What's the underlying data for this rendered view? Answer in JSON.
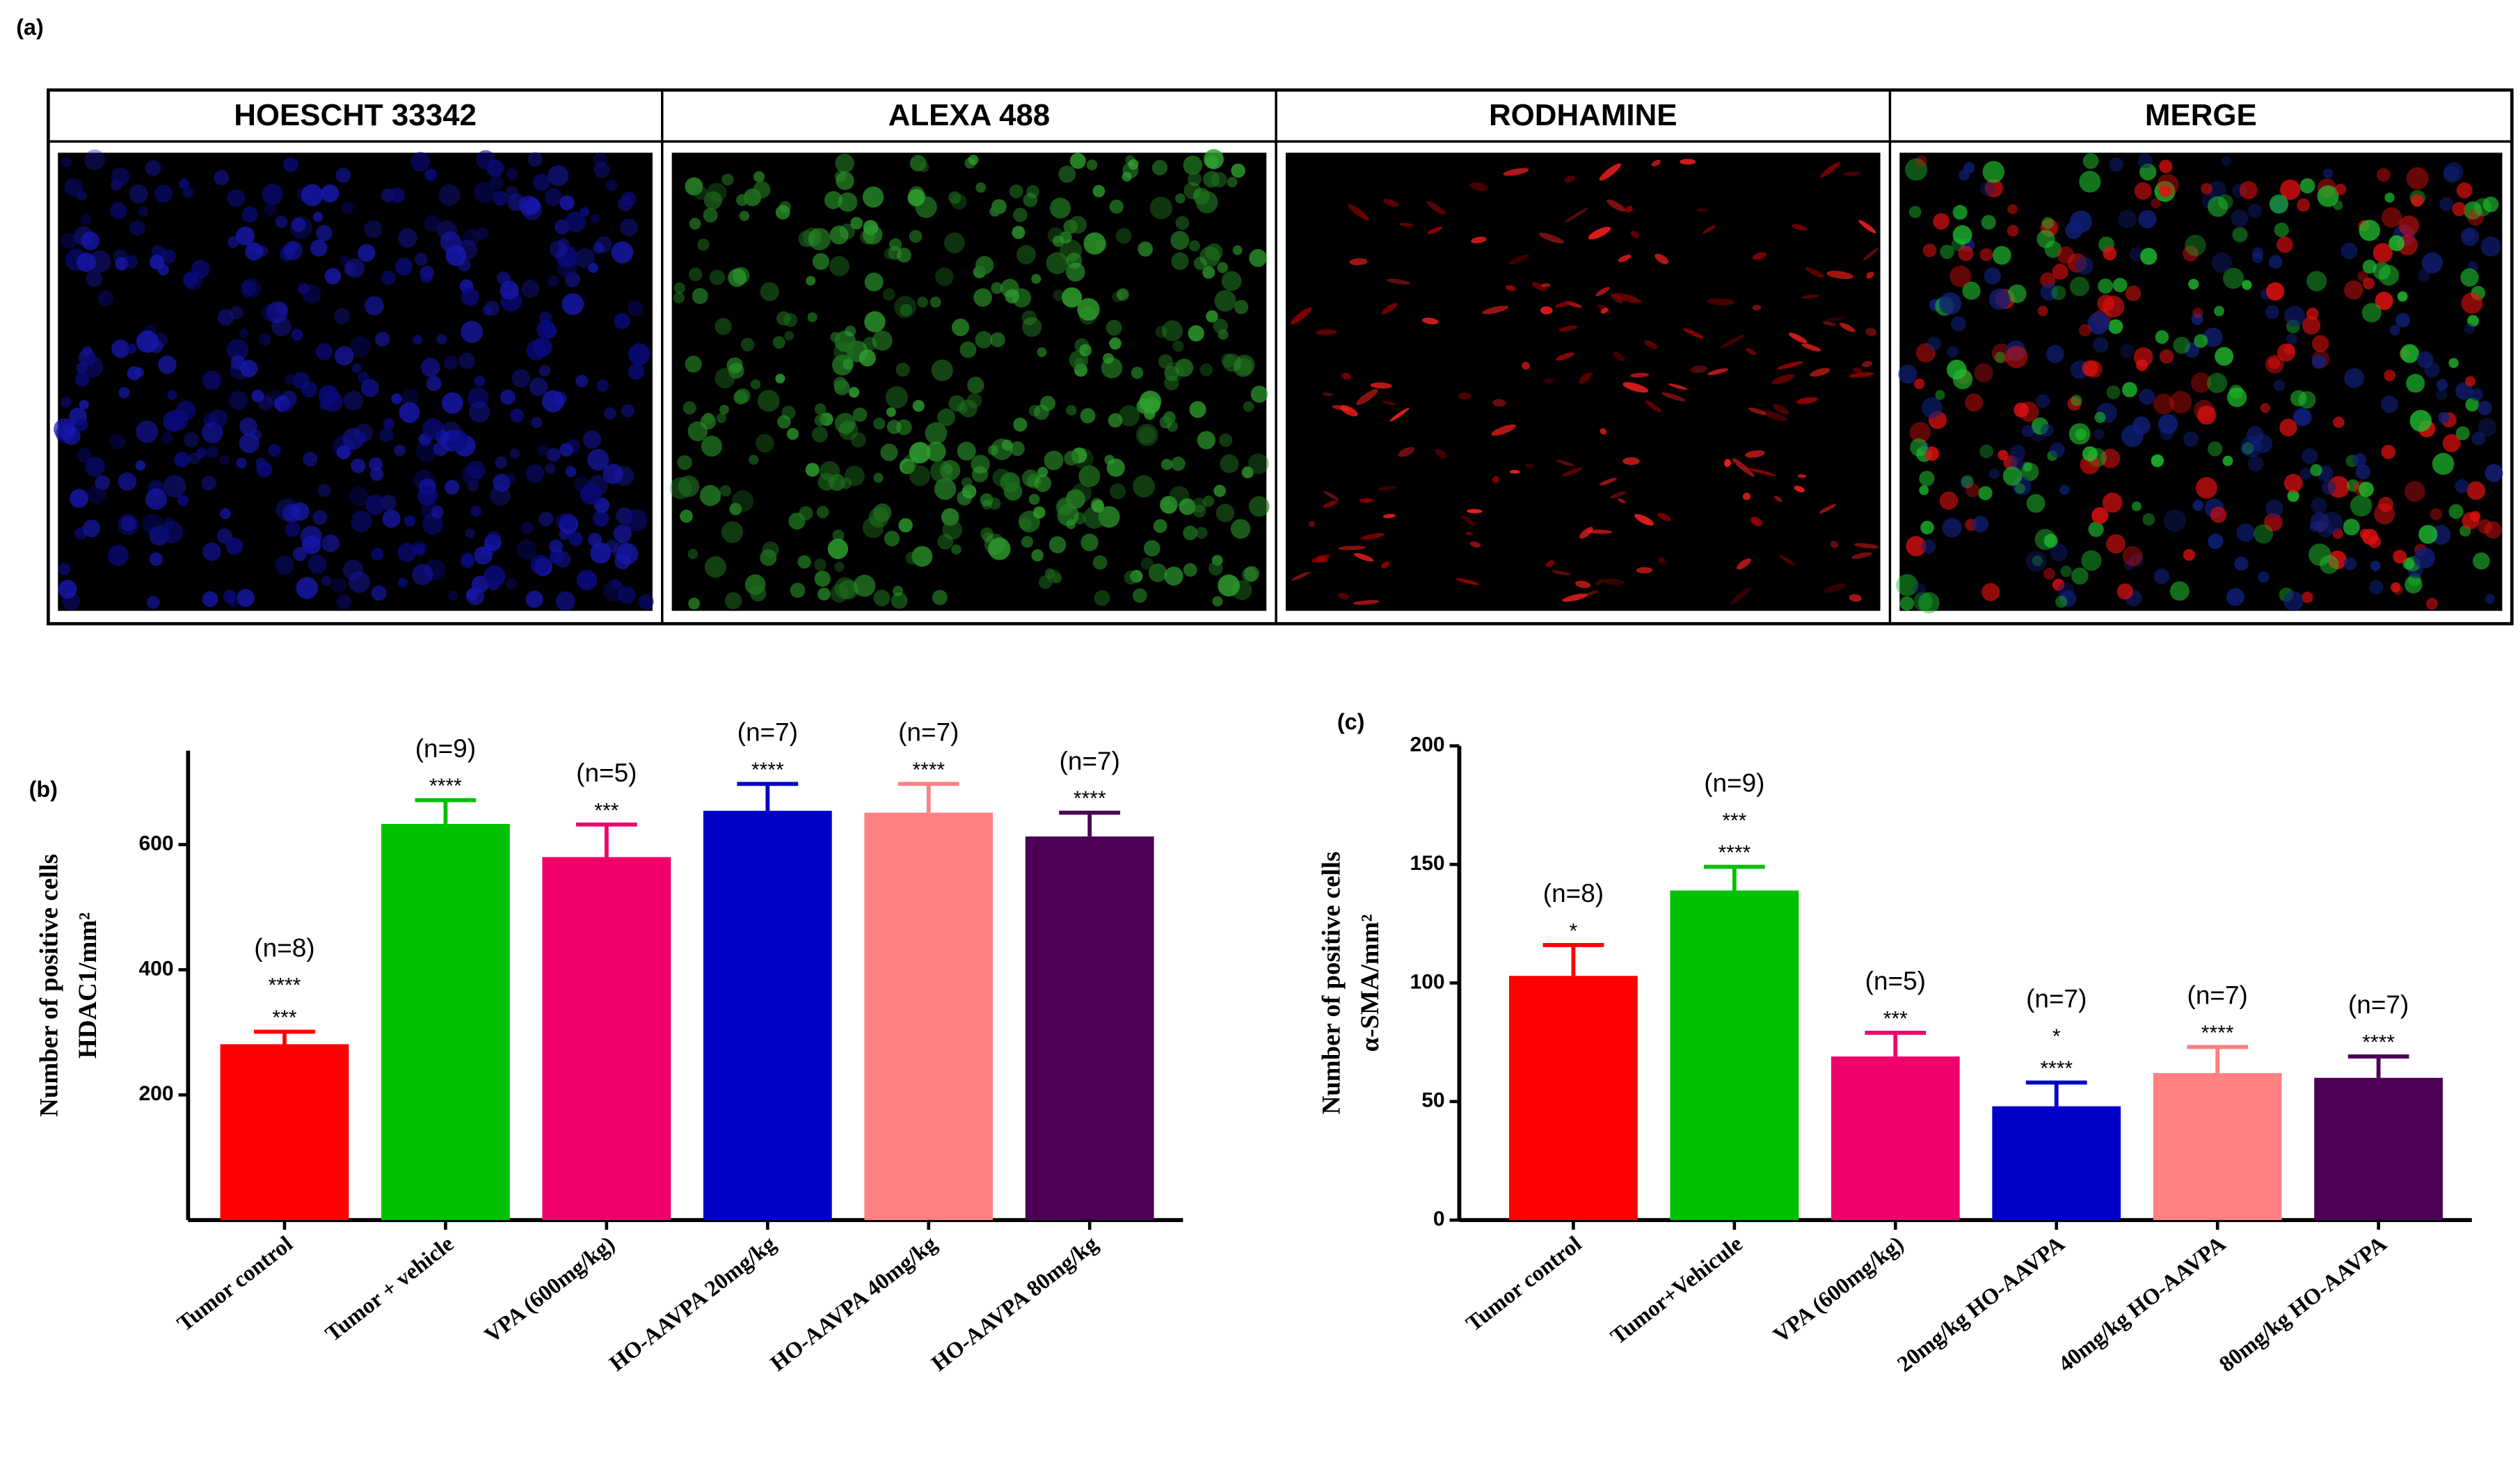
{
  "panel_a": {
    "label": "(a)",
    "columns": [
      "HOESCHT 33342",
      "ALEXA 488",
      "RODHAMINE",
      "MERGE"
    ]
  },
  "chart_data": [
    {
      "type": "bar",
      "panel_label": "(b)",
      "y_label": [
        "Number of positive cells",
        "HDAC1/mm²"
      ],
      "categories": [
        "Tumor control",
        "Tumor + vehicle",
        "VPA (600mg/kg)",
        "HO-AAVPA 20mg/kg",
        "HO-AAVPA 40mg/kg",
        "HO-AAVPA 80mg/kg"
      ],
      "values": [
        281,
        633,
        580,
        654,
        651,
        613
      ],
      "errors": [
        20,
        38,
        52,
        43,
        46,
        38
      ],
      "colors": [
        "#ff0000",
        "#00c000",
        "#f0006a",
        "#0000c8",
        "#ff8080",
        "#4b0055"
      ],
      "n_labels": [
        "(n=8)",
        "(n=9)",
        "(n=5)",
        "(n=7)",
        "(n=7)",
        "(n=7)"
      ],
      "significance": [
        [
          "****",
          "***"
        ],
        [
          "****"
        ],
        [
          "***"
        ],
        [
          "****"
        ],
        [
          "****"
        ],
        [
          "****"
        ]
      ],
      "ylim": [
        0,
        750
      ],
      "yticks": [
        200,
        400,
        600
      ]
    },
    {
      "type": "bar",
      "panel_label": "(c)",
      "y_label": [
        "Number of positive cells",
        "α-SMA/mm²"
      ],
      "categories": [
        "Tumor control",
        "Tumor+Vehicule",
        "VPA (600mg/kg)",
        "20mg/kg HO-AAVPA",
        "40mg/kg HO-AAVPA",
        "80mg/kg HO-AAVPA"
      ],
      "values": [
        103,
        139,
        69,
        48,
        62,
        60
      ],
      "errors": [
        13,
        10,
        10,
        10,
        11,
        9
      ],
      "colors": [
        "#ff0000",
        "#00c000",
        "#f0006a",
        "#0000c8",
        "#ff8080",
        "#4b0055"
      ],
      "n_labels": [
        "(n=8)",
        "(n=9)",
        "(n=5)",
        "(n=7)",
        "(n=7)",
        "(n=7)"
      ],
      "significance": [
        [
          "*"
        ],
        [
          "***",
          "****"
        ],
        [
          "***"
        ],
        [
          "*",
          "****"
        ],
        [
          "****"
        ],
        [
          "****"
        ]
      ],
      "ylim": [
        0,
        200
      ],
      "yticks": [
        0,
        50,
        100,
        150,
        200
      ]
    }
  ]
}
